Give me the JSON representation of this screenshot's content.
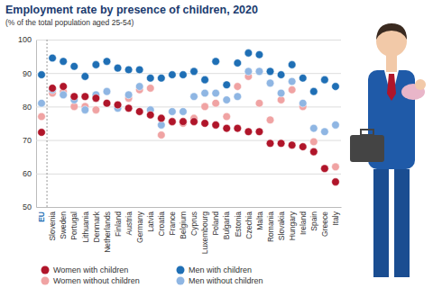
{
  "chart_data": {
    "type": "dot",
    "title": "Employment rate by presence of children, 2020",
    "subtitle": "(% of the total population aged 25-54)",
    "categories": [
      "EU",
      "Slovenia",
      "Sweden",
      "Portugal",
      "Lithuania",
      "Denmark",
      "Netherlands",
      "Finland",
      "Austria",
      "Germany",
      "Latvia",
      "Croatia",
      "France",
      "Belgium",
      "Cyprus",
      "Luxembourg",
      "Poland",
      "Bulgaria",
      "Estonia",
      "Czechia",
      "Malta",
      "Romania",
      "Slovakia",
      "Hungary",
      "Ireland",
      "Spain",
      "Greece",
      "Italy"
    ],
    "series": [
      {
        "name": "Women with children",
        "color": "#b0152a",
        "marker": "circle",
        "values": [
          72.3,
          85.5,
          86,
          83,
          83,
          82.5,
          81,
          80.5,
          79.5,
          78.5,
          77.5,
          76.5,
          75.5,
          75.5,
          75.5,
          75,
          74.5,
          73.5,
          73.5,
          72.5,
          72.5,
          69,
          69,
          68.5,
          68,
          66.5,
          61.5,
          57.5
        ]
      },
      {
        "name": "Women without children",
        "color": "#f0a3a3",
        "marker": "circle",
        "values": [
          77,
          84,
          84.5,
          80,
          80,
          79,
          81,
          80.5,
          82.5,
          85,
          85.5,
          71.5,
          75.5,
          75,
          76.5,
          80,
          81,
          77,
          86,
          89,
          81,
          76,
          82,
          85,
          80,
          69.5,
          61.5,
          62
        ]
      },
      {
        "name": "Men with children",
        "color": "#1f6fb5",
        "marker": "circle",
        "values": [
          89.5,
          94.5,
          93.5,
          92,
          89,
          92.5,
          93.5,
          91.5,
          91,
          91,
          88.5,
          88.5,
          89.5,
          89.5,
          90.5,
          88,
          93.5,
          86.5,
          93,
          96,
          95.5,
          90.5,
          89.5,
          92.5,
          88.5,
          84.5,
          88,
          86
        ]
      },
      {
        "name": "Men without children",
        "color": "#8fb6e3",
        "marker": "circle",
        "values": [
          81,
          85,
          83.5,
          82,
          79,
          83.5,
          84.5,
          79.5,
          83.5,
          86,
          79,
          74.5,
          78.5,
          78.5,
          83,
          84,
          84,
          82,
          83,
          90.5,
          90.5,
          87,
          84,
          87.5,
          81,
          73.5,
          72.5,
          74.5
        ]
      }
    ],
    "ylim": [
      50,
      100
    ],
    "yticks": [
      50,
      60,
      70,
      80,
      90,
      100
    ],
    "grid": true,
    "legend": "bottom"
  }
}
